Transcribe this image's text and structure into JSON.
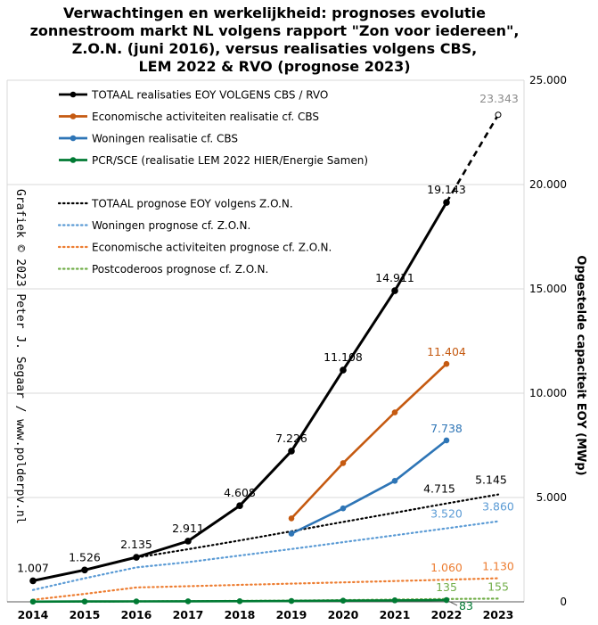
{
  "title_lines": [
    "Verwachtingen en werkelijkheid:  prognoses evolutie",
    "zonnestroom markt NL volgens rapport \"Zon voor iedereen\",",
    "Z.O.N. (juni 2016), versus realisaties  volgens CBS,",
    "LEM 2022 & RVO (prognose 2023)"
  ],
  "credit": "Grafiek © 2023 Peter J. Segaar / www.polderpv.nl",
  "chart_data": {
    "type": "line",
    "x": [
      2014,
      2015,
      2016,
      2017,
      2018,
      2019,
      2020,
      2021,
      2022,
      2023
    ],
    "xticklabels": [
      "2014",
      "2015",
      "2016",
      "2017",
      "2018",
      "2019",
      "2020",
      "2021",
      "2022",
      "2023"
    ],
    "ylabel": "Opgestelde capaciteit EOY (MWp)",
    "ylim": [
      0,
      25000
    ],
    "yticks": [
      0,
      5000,
      10000,
      15000,
      20000,
      25000
    ],
    "yticklabels": [
      "0",
      "5.000",
      "10.000",
      "15.000",
      "20.000",
      "25.000"
    ],
    "y_axis_position": "right",
    "grid": true,
    "legend_position": "top-left",
    "series": [
      {
        "name": "TOTAAL realisaties EOY VOLGENS CBS / RVO",
        "color": "#000000",
        "style": "solid",
        "markers": true,
        "values": [
          1007,
          1526,
          2135,
          2911,
          4608,
          7226,
          11108,
          14911,
          19143,
          null
        ],
        "labels": [
          "1.007",
          "1.526",
          "2.135",
          "2.911",
          "4.608",
          "7.226",
          "11.108",
          "14.911",
          "19.143",
          ""
        ]
      },
      {
        "name": "Economische activiteiten realisatie cf. CBS",
        "color": "#c55a11",
        "style": "solid",
        "markers": true,
        "values": [
          null,
          null,
          null,
          null,
          null,
          4000,
          6650,
          9080,
          11404,
          null
        ],
        "labels": [
          "",
          "",
          "",
          "",
          "",
          "",
          "",
          "",
          "11.404",
          ""
        ]
      },
      {
        "name": "Woningen realisatie cf. CBS",
        "color": "#2e75b6",
        "style": "solid",
        "markers": true,
        "values": [
          null,
          null,
          null,
          null,
          null,
          3270,
          4480,
          5800,
          7738,
          null
        ],
        "labels": [
          "",
          "",
          "",
          "",
          "",
          "",
          "",
          "",
          "7.738",
          ""
        ]
      },
      {
        "name": "PCR/SCE (realisatie LEM 2022 HIER/Energie Samen)",
        "color": "#007a33",
        "style": "solid",
        "markers": true,
        "values": [
          10,
          15,
          20,
          25,
          30,
          40,
          55,
          70,
          83,
          null
        ],
        "labels": [
          "",
          "",
          "",
          "",
          "",
          "",
          "",
          "",
          "83",
          ""
        ]
      },
      {
        "name": "TOTAAL prognose EOY volgens Z.O.N.",
        "color": "#000000",
        "style": "dotted",
        "markers": false,
        "values": [
          1007,
          1520,
          2120,
          2520,
          2940,
          3380,
          3830,
          4270,
          4715,
          5145
        ],
        "labels": [
          "",
          "",
          "",
          "",
          "",
          "",
          "",
          "",
          "4.715",
          "5.145"
        ]
      },
      {
        "name": "Woningen prognose cf. Z.O.N.",
        "color": "#5b9bd5",
        "style": "dotted",
        "markers": false,
        "values": [
          570,
          1130,
          1650,
          1900,
          2220,
          2530,
          2860,
          3190,
          3520,
          3860
        ],
        "labels": [
          "",
          "",
          "",
          "",
          "",
          "",
          "",
          "",
          "3.520",
          "3.860"
        ]
      },
      {
        "name": "Economische activiteiten prognose cf. Z.O.N.",
        "color": "#ed7d31",
        "style": "dotted",
        "markers": false,
        "values": [
          100,
          380,
          690,
          750,
          810,
          870,
          930,
          995,
          1060,
          1130
        ],
        "labels": [
          "",
          "",
          "",
          "",
          "",
          "",
          "",
          "",
          "1.060",
          "1.130"
        ]
      },
      {
        "name": "Postcoderoos prognose cf. Z.O.N.",
        "color": "#70ad47",
        "style": "dotted",
        "markers": false,
        "values": [
          5,
          12,
          20,
          30,
          45,
          60,
          80,
          105,
          135,
          155
        ],
        "labels": [
          "",
          "",
          "",
          "",
          "",
          "",
          "",
          "",
          "135",
          "155"
        ]
      }
    ],
    "prognosis_2023": {
      "color": "#000000",
      "style": "dashed",
      "from": {
        "x": 2022,
        "y": 19143
      },
      "to": {
        "x": 2023,
        "y": 23343
      },
      "label": "23.343",
      "label_color": "#8c8c8c"
    }
  }
}
